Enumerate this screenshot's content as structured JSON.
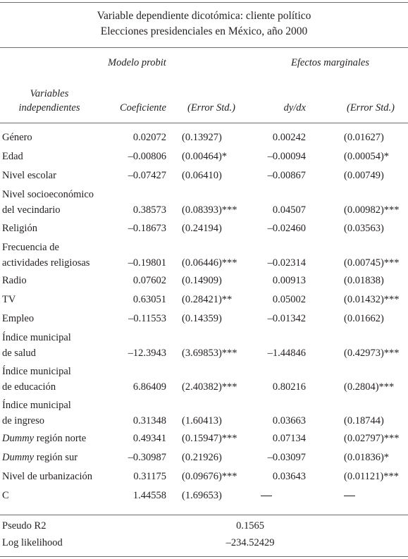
{
  "title_line1": "Variable dependiente dicotómica: cliente político",
  "title_line2": "Elecciones presidenciales en México, año 2000",
  "group_headers": {
    "probit": "Modelo probit",
    "marginal": "Efectos marginales"
  },
  "column_headers": {
    "variables_line1": "Variables",
    "variables_line2": "independientes",
    "coef": "Coeficiente",
    "se1": "(Error Std.)",
    "dydx": "dy/dx",
    "se2": "(Error Std.)"
  },
  "rows": [
    {
      "label": [
        "Género"
      ],
      "coef": "0.02072",
      "se1": "(0.13927)",
      "dydx": "0.00242",
      "se2": "(0.01627)"
    },
    {
      "label": [
        "Edad"
      ],
      "coef": "–0.00806",
      "se1": "(0.00464)*",
      "dydx": "–0.00094",
      "se2": "(0.00054)*"
    },
    {
      "label": [
        "Nivel escolar"
      ],
      "coef": "–0.07427",
      "se1": "(0.06410)",
      "dydx": "–0.00867",
      "se2": "(0.00749)"
    },
    {
      "label": [
        "Nivel socioeconómico",
        "del vecindario"
      ],
      "coef": "0.38573",
      "se1": "(0.08393)***",
      "dydx": "0.04507",
      "se2": "(0.00982)***"
    },
    {
      "label": [
        "Religión"
      ],
      "coef": "–0.18673",
      "se1": "(0.24194)",
      "dydx": "–0.02460",
      "se2": "(0.03563)"
    },
    {
      "label": [
        "Frecuencia de",
        "actividades religiosas"
      ],
      "coef": "–0.19801",
      "se1": "(0.06446)***",
      "dydx": "–0.02314",
      "se2": "(0.00745)***"
    },
    {
      "label": [
        "Radio"
      ],
      "coef": "0.07602",
      "se1": "(0.14909)",
      "dydx": "0.00913",
      "se2": "(0.01838)"
    },
    {
      "label": [
        "TV"
      ],
      "coef": "0.63051",
      "se1": "(0.28421)**",
      "dydx": "0.05002",
      "se2": "(0.01432)***"
    },
    {
      "label": [
        "Empleo"
      ],
      "coef": "–0.11553",
      "se1": "(0.14359)",
      "dydx": "–0.01342",
      "se2": "(0.01662)"
    },
    {
      "label": [
        "Índice municipal",
        "de salud"
      ],
      "coef": "–12.3943",
      "se1": "(3.69853)***",
      "dydx": "–1.44846",
      "se2": "(0.42973)***"
    },
    {
      "label": [
        "Índice municipal",
        "de educación"
      ],
      "coef": "6.86409",
      "se1": "(2.40382)***",
      "dydx": "0.80216",
      "se2": "(0.2804)***"
    },
    {
      "label": [
        "Índice municipal",
        "de ingreso"
      ],
      "coef": "0.31348",
      "se1": "(1.60413)",
      "dydx": "0.03663",
      "se2": "(0.18744)"
    },
    {
      "label": [
        "Dummy región norte"
      ],
      "italic_prefix": "Dummy",
      "rest": " región norte",
      "coef": "0.49341",
      "se1": "(0.15947)***",
      "dydx": "0.07134",
      "se2": "(0.02797)***"
    },
    {
      "label": [
        "Dummy región sur"
      ],
      "italic_prefix": "Dummy",
      "rest": " región sur",
      "coef": "–0.30987",
      "se1": "(0.21926)",
      "dydx": "–0.03097",
      "se2": "(0.01836)*"
    },
    {
      "label": [
        "Nivel de urbanización"
      ],
      "coef": "0.31175",
      "se1": "(0.09676)***",
      "dydx": "0.03643",
      "se2": "(0.01121)***"
    },
    {
      "label": [
        "C"
      ],
      "coef": "1.44558",
      "se1": "(1.69653)",
      "dydx": "—",
      "se2": "—"
    }
  ],
  "stats": [
    {
      "label": "Pseudo R2",
      "value": "0.1565"
    },
    {
      "label": "Log likelihood",
      "value": "–234.52429"
    }
  ]
}
